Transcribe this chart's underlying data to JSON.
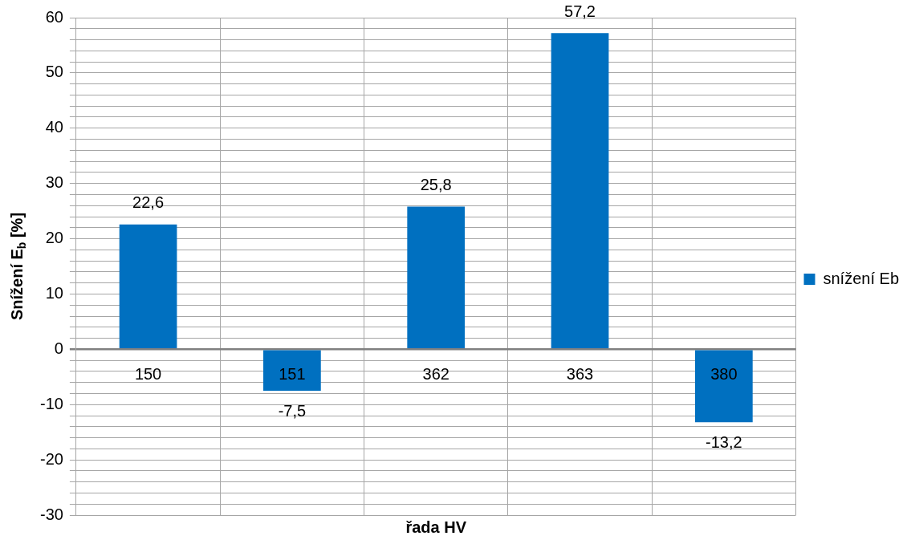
{
  "chart_data": {
    "type": "bar",
    "xlabel": "řada HV",
    "ylabel": "Snížení E$_{b}$ [%]",
    "categories": [
      "150",
      "151",
      "362",
      "363",
      "380"
    ],
    "series": [
      {
        "name": "snížení Eb",
        "color": "#0070c0",
        "values": [
          22.6,
          -7.5,
          25.8,
          57.2,
          -13.2
        ],
        "value_labels": [
          "22,6",
          "-7,5",
          "25,8",
          "57,2",
          "-13,2"
        ]
      }
    ],
    "ylim": [
      -30,
      60
    ],
    "yticks": [
      -30,
      {
        "value": -28,
        "label": null
      },
      {
        "value": -26,
        "label": null
      },
      {
        "value": -24,
        "label": null
      },
      {
        "value": -22,
        "label": null
      },
      -20,
      {
        "value": -18,
        "label": null
      },
      {
        "value": -16,
        "label": null
      },
      {
        "value": -14,
        "label": null
      },
      {
        "value": -12,
        "label": null
      },
      -10,
      {
        "value": -8,
        "label": null
      },
      {
        "value": -6,
        "label": null
      },
      {
        "value": -4,
        "label": null
      },
      {
        "value": -2,
        "label": null
      },
      0,
      {
        "value": 2,
        "label": null
      },
      {
        "value": 4,
        "label": null
      },
      {
        "value": 6,
        "label": null
      },
      {
        "value": 8,
        "label": null
      },
      10,
      {
        "value": 12,
        "label": null
      },
      {
        "value": 14,
        "label": null
      },
      {
        "value": 16,
        "label": null
      },
      {
        "value": 18,
        "label": null
      },
      20,
      {
        "value": 22,
        "label": null
      },
      {
        "value": 24,
        "label": null
      },
      {
        "value": 26,
        "label": null
      },
      {
        "value": 28,
        "label": null
      },
      30,
      {
        "value": 32,
        "label": null
      },
      {
        "value": 34,
        "label": null
      },
      {
        "value": 36,
        "label": null
      },
      {
        "value": 38,
        "label": null
      },
      40,
      {
        "value": 42,
        "label": null
      },
      {
        "value": 44,
        "label": null
      },
      {
        "value": 46,
        "label": null
      },
      {
        "value": 48,
        "label": null
      },
      50,
      {
        "value": 52,
        "label": null
      },
      {
        "value": 54,
        "label": null
      },
      {
        "value": 56,
        "label": null
      },
      {
        "value": 58,
        "label": null
      },
      60
    ],
    "grid": true,
    "legend": "right"
  }
}
